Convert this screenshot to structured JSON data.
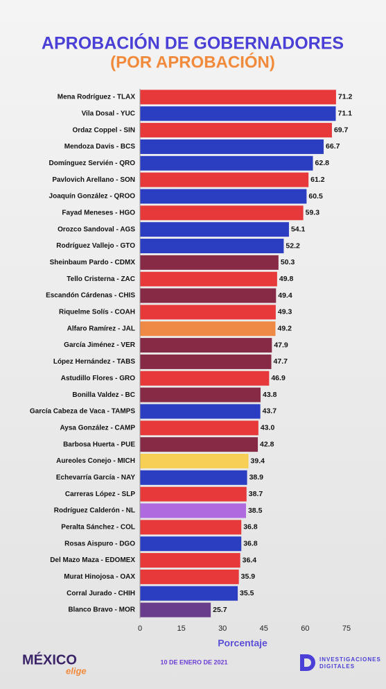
{
  "chart_data": {
    "type": "barh",
    "title": "APROBACIÓN DE GOBERNADORES",
    "subtitle": "(POR APROBACIÓN)",
    "x_label": "Porcentaje",
    "categories": [
      "Mena Rodríguez - TLAX",
      "Vila Dosal - YUC",
      "Ordaz Coppel - SIN",
      "Mendoza Davis - BCS",
      "Domínguez Servién - QRO",
      "Pavlovich Arellano - SON",
      "Joaquín González - QROO",
      "Fayad Meneses - HGO",
      "Orozco Sandoval - AGS",
      "Rodríguez Vallejo - GTO",
      "Sheinbaum Pardo - CDMX",
      "Tello Cristerna - ZAC",
      "Escandón Cárdenas - CHIS",
      "Riquelme Solís - COAH",
      "Alfaro Ramírez - JAL",
      "García Jiménez - VER",
      "López Hernández - TABS",
      "Astudillo Flores - GRO",
      "Bonilla Valdez - BC",
      "García Cabeza de Vaca - TAMPS",
      "Aysa González - CAMP",
      "Barbosa Huerta - PUE",
      "Aureoles Conejo - MICH",
      "Echevarría García - NAY",
      "Carreras López - SLP",
      "Rodríguez Calderón - NL",
      "Peralta Sánchez - COL",
      "Rosas Aispuro - DGO",
      "Del Mazo Maza - EDOMEX",
      "Murat Hinojosa - OAX",
      "Corral Jurado - CHIH",
      "Blanco Bravo - MOR"
    ],
    "values": [
      71.2,
      71.1,
      69.7,
      66.7,
      62.8,
      61.2,
      60.5,
      59.3,
      54.1,
      52.2,
      50.3,
      49.8,
      49.4,
      49.3,
      49.2,
      47.9,
      47.7,
      46.9,
      43.8,
      43.7,
      43.0,
      42.8,
      39.4,
      38.9,
      38.7,
      38.5,
      36.8,
      36.8,
      36.4,
      35.9,
      35.5,
      25.7
    ],
    "value_labels": [
      "71.2",
      "71.1",
      "69.7",
      "66.7",
      "62.8",
      "61.2",
      "60.5",
      "59.3",
      "54.1",
      "52.2",
      "50.3",
      "49.8",
      "49.4",
      "49.3",
      "49.2",
      "47.9",
      "47.7",
      "46.9",
      "43.8",
      "43.7",
      "43.0",
      "42.8",
      "39.4",
      "38.9",
      "38.7",
      "38.5",
      "36.8",
      "36.8",
      "36.4",
      "35.9",
      "35.5",
      "25.7"
    ],
    "colors": [
      "#e8393a",
      "#2b3ec2",
      "#e8393a",
      "#2b3ec2",
      "#2b3ec2",
      "#e8393a",
      "#2b3ec2",
      "#e8393a",
      "#2b3ec2",
      "#2b3ec2",
      "#862a45",
      "#e8393a",
      "#862a45",
      "#e8393a",
      "#ee8a45",
      "#862a45",
      "#862a45",
      "#e8393a",
      "#862a45",
      "#2b3ec2",
      "#e8393a",
      "#862a45",
      "#f7cf55",
      "#2b3ec2",
      "#e8393a",
      "#b06ae0",
      "#e8393a",
      "#2b3ec2",
      "#e8393a",
      "#e8393a",
      "#2b3ec2",
      "#6a3d8c"
    ],
    "xlim": [
      0,
      75
    ],
    "xticks": [
      0,
      15,
      30,
      45,
      60,
      75
    ]
  },
  "footer": {
    "logo_main": "MÉXICO",
    "logo_sub": "elige",
    "date": "10 DE ENERO DE 2021",
    "brand_line1": "INVESTIGACIONES",
    "brand_line2": "DIGITALES"
  }
}
